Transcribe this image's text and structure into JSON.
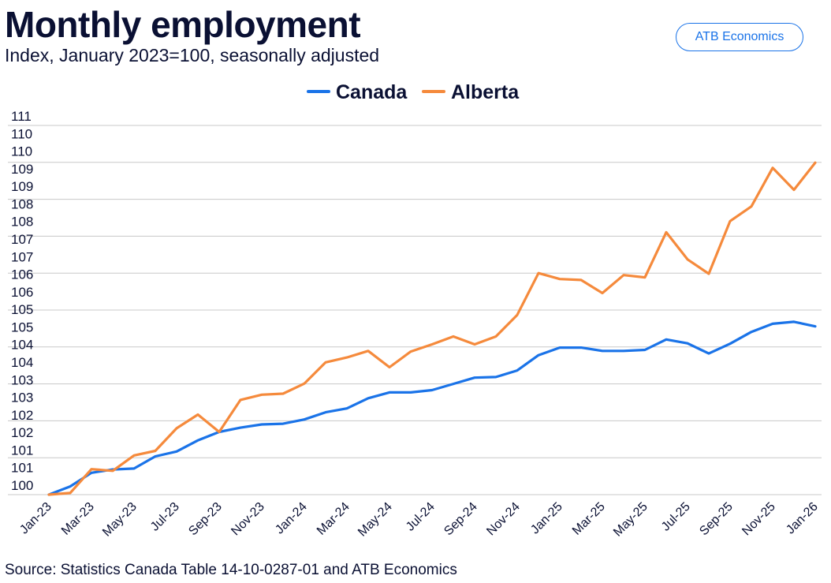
{
  "header": {
    "title": "Monthly employment",
    "subtitle": "Index, January 2023=100, seasonally adjusted",
    "badge": "ATB Economics"
  },
  "footer": {
    "source": "Source: Statistics Canada Table 14-10-0287-01 and ATB Economics"
  },
  "colors": {
    "canada": "#1a73e8",
    "alberta": "#f58a3c",
    "grid": "#c8c8c8",
    "text": "#0a1033"
  },
  "chart_data": {
    "type": "line",
    "title": "Monthly employment",
    "subtitle": "Index, January 2023=100, seasonally adjusted",
    "xlabel": "",
    "ylabel": "",
    "ylim": [
      100,
      111.3
    ],
    "grid": true,
    "legend_position": "top-center",
    "x": [
      "Jan-23",
      "Feb-23",
      "Mar-23",
      "Apr-23",
      "May-23",
      "Jun-23",
      "Jul-23",
      "Aug-23",
      "Sep-23",
      "Oct-23",
      "Nov-23",
      "Dec-23",
      "Jan-24",
      "Feb-24",
      "Mar-24",
      "Apr-24",
      "May-24",
      "Jun-24",
      "Jul-24",
      "Aug-24",
      "Sep-24",
      "Oct-24",
      "Nov-24",
      "Dec-24",
      "Jan-25",
      "Feb-25",
      "Mar-25",
      "Apr-25",
      "May-25",
      "Jun-25",
      "Jul-25",
      "Aug-25",
      "Sep-25",
      "Oct-25",
      "Nov-25",
      "Dec-25",
      "Jan-26"
    ],
    "x_tick_labels": [
      "Jan-23",
      "Mar-23",
      "May-23",
      "Jul-23",
      "Sep-23",
      "Nov-23",
      "Jan-24",
      "Mar-24",
      "May-24",
      "Jul-24",
      "Sep-24",
      "Nov-24",
      "Jan-25",
      "Mar-25",
      "May-25",
      "Jul-25",
      "Sep-25",
      "Nov-25",
      "Jan-26"
    ],
    "y_tick_labels": [
      "100",
      "101",
      "101",
      "102",
      "102",
      "103",
      "103",
      "104",
      "104",
      "105",
      "105",
      "106",
      "106",
      "107",
      "107",
      "108",
      "108",
      "109",
      "109",
      "110",
      "110",
      "111"
    ],
    "series": [
      {
        "name": "Canada",
        "color": "#1a73e8",
        "values": [
          100.0,
          100.25,
          100.67,
          100.77,
          100.8,
          101.17,
          101.32,
          101.66,
          101.92,
          102.05,
          102.15,
          102.17,
          102.3,
          102.52,
          102.64,
          102.95,
          103.13,
          103.13,
          103.2,
          103.39,
          103.58,
          103.6,
          103.8,
          104.27,
          104.5,
          104.5,
          104.4,
          104.4,
          104.43,
          104.75,
          104.63,
          104.32,
          104.62,
          104.98,
          105.23,
          105.29,
          105.15
        ]
      },
      {
        "name": "Alberta",
        "color": "#f58a3c",
        "values": [
          100.0,
          100.05,
          100.78,
          100.73,
          101.2,
          101.34,
          102.03,
          102.45,
          101.92,
          102.9,
          103.06,
          103.09,
          103.4,
          104.05,
          104.2,
          104.4,
          103.9,
          104.38,
          104.6,
          104.84,
          104.6,
          104.84,
          105.5,
          106.78,
          106.6,
          106.57,
          106.17,
          106.72,
          106.65,
          108.03,
          107.2,
          106.76,
          108.37,
          108.82,
          110.0,
          109.33,
          110.16
        ]
      }
    ]
  }
}
